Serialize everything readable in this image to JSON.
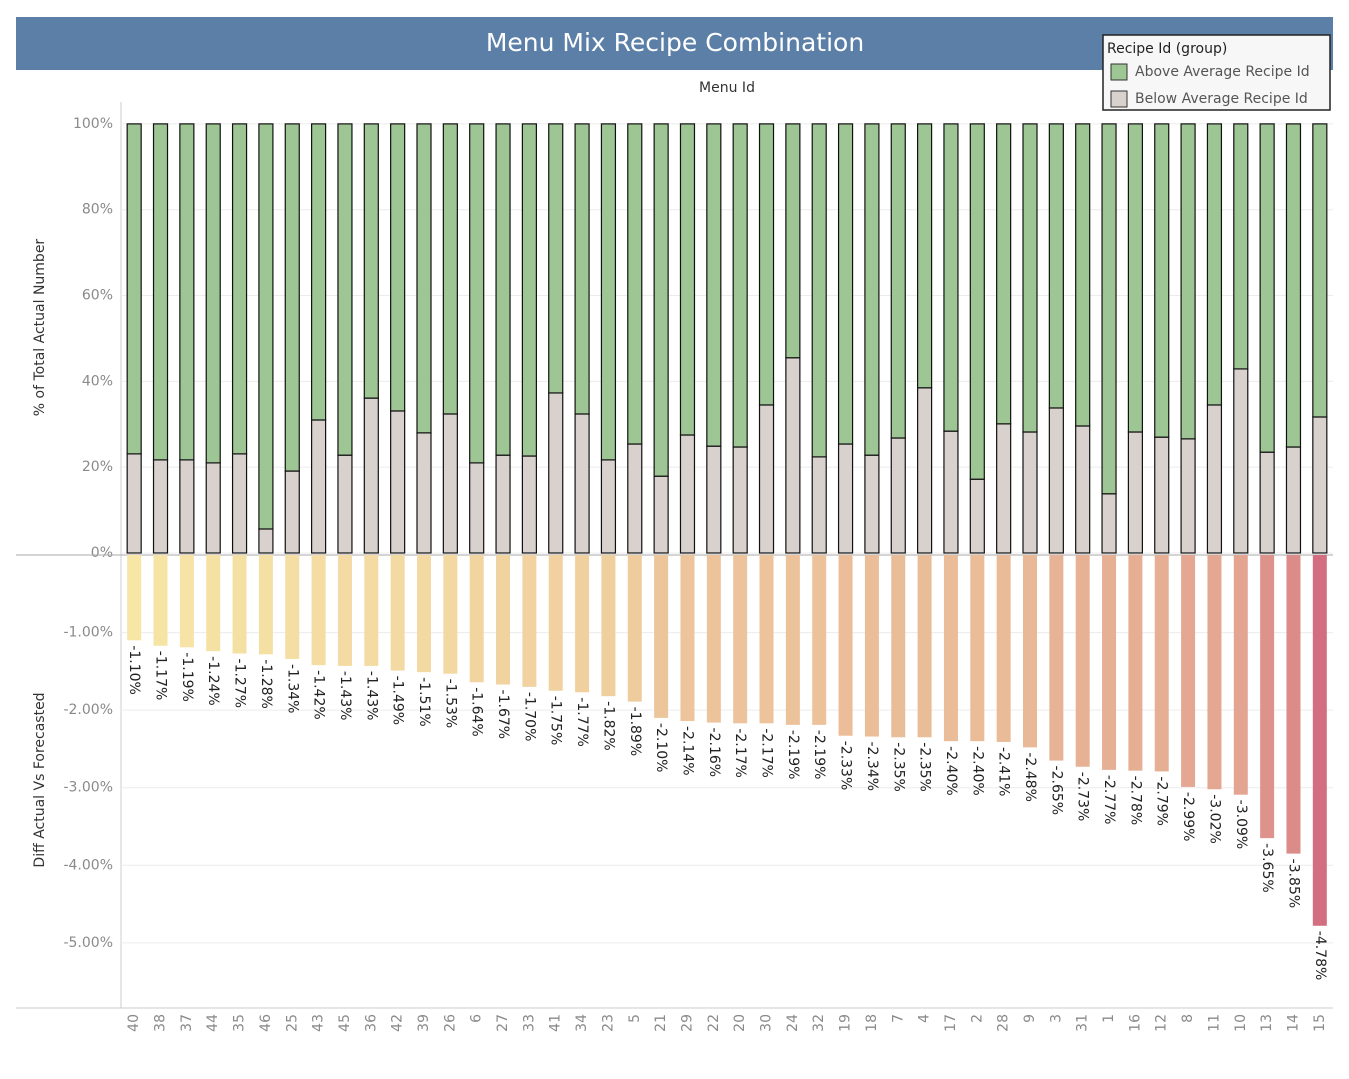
{
  "title": "Menu Mix Recipe Combination",
  "chart_data": [
    {
      "type": "stacked_bar",
      "x_label": "Menu Id",
      "y_label": "% of Total Actual Number",
      "legend_title": "Recipe Id (group)",
      "legend": "top-right",
      "ylim": [
        0,
        105.1
      ],
      "yticks": [
        {
          "value": 0,
          "label": "0%"
        },
        {
          "value": 20,
          "label": "20%"
        },
        {
          "value": 40,
          "label": "40%"
        },
        {
          "value": 60,
          "label": "60%"
        },
        {
          "value": 80,
          "label": "80%"
        },
        {
          "value": 100,
          "label": "100%"
        }
      ],
      "grid": true,
      "series": [
        {
          "name": "Below Average Recipe Id",
          "color": "#d9d1ce",
          "values": [
            23.1,
            21.7,
            21.7,
            21.0,
            23.1,
            5.6,
            19.1,
            31.0,
            22.8,
            36.1,
            33.1,
            28.0,
            32.4,
            21.0,
            22.8,
            22.6,
            37.3,
            32.4,
            21.7,
            25.4,
            17.9,
            27.5,
            24.9,
            24.7,
            34.5,
            45.5,
            22.4,
            25.4,
            22.8,
            26.8,
            38.5,
            28.4,
            17.2,
            30.1,
            28.2,
            33.8,
            29.6,
            13.8,
            28.2,
            27.0,
            26.6,
            34.5,
            42.9,
            23.5,
            24.7,
            31.7
          ]
        },
        {
          "name": "Above Average Recipe Id",
          "color": "#9ec594",
          "values": [
            76.9,
            78.3,
            78.3,
            79.0,
            76.9,
            94.4,
            80.9,
            69.0,
            77.2,
            63.9,
            66.9,
            72.0,
            67.6,
            79.0,
            77.2,
            77.4,
            62.7,
            67.6,
            78.3,
            74.6,
            82.1,
            72.5,
            75.1,
            75.3,
            65.5,
            54.5,
            77.6,
            74.6,
            77.2,
            73.2,
            61.5,
            71.6,
            82.8,
            69.9,
            71.8,
            66.2,
            70.4,
            86.2,
            71.8,
            73.0,
            73.4,
            65.5,
            57.1,
            76.5,
            75.3,
            68.3
          ]
        }
      ]
    },
    {
      "type": "bar",
      "y_label": "Diff Actual Vs Forecasted",
      "categories": [
        "40",
        "38",
        "37",
        "44",
        "35",
        "46",
        "25",
        "43",
        "45",
        "36",
        "42",
        "39",
        "26",
        "6",
        "27",
        "33",
        "41",
        "34",
        "23",
        "5",
        "21",
        "29",
        "22",
        "20",
        "30",
        "24",
        "32",
        "19",
        "18",
        "7",
        "4",
        "17",
        "2",
        "28",
        "9",
        "3",
        "31",
        "1",
        "16",
        "12",
        "8",
        "11",
        "10",
        "13",
        "14",
        "15"
      ],
      "values": [
        -1.1,
        -1.17,
        -1.19,
        -1.24,
        -1.27,
        -1.28,
        -1.34,
        -1.42,
        -1.43,
        -1.43,
        -1.49,
        -1.51,
        -1.53,
        -1.64,
        -1.67,
        -1.7,
        -1.75,
        -1.77,
        -1.82,
        -1.89,
        -2.1,
        -2.14,
        -2.16,
        -2.17,
        -2.17,
        -2.19,
        -2.19,
        -2.33,
        -2.34,
        -2.35,
        -2.35,
        -2.4,
        -2.4,
        -2.41,
        -2.48,
        -2.65,
        -2.73,
        -2.77,
        -2.78,
        -2.79,
        -2.99,
        -3.02,
        -3.09,
        -3.65,
        -3.85,
        -4.78
      ],
      "value_labels": [
        "-1.10%",
        "-1.17%",
        "-1.19%",
        "-1.24%",
        "-1.27%",
        "-1.28%",
        "-1.34%",
        "-1.42%",
        "-1.43%",
        "-1.43%",
        "-1.49%",
        "-1.51%",
        "-1.53%",
        "-1.64%",
        "-1.67%",
        "-1.70%",
        "-1.75%",
        "-1.77%",
        "-1.82%",
        "-1.89%",
        "-2.10%",
        "-2.14%",
        "-2.16%",
        "-2.17%",
        "-2.17%",
        "-2.19%",
        "-2.19%",
        "-2.33%",
        "-2.34%",
        "-2.35%",
        "-2.35%",
        "-2.40%",
        "-2.40%",
        "-2.41%",
        "-2.48%",
        "-2.65%",
        "-2.73%",
        "-2.77%",
        "-2.78%",
        "-2.79%",
        "-2.99%",
        "-3.02%",
        "-3.09%",
        "-3.65%",
        "-3.85%",
        "-4.78%"
      ],
      "color_range": [
        "#f7e6a6",
        "#d26e7f"
      ],
      "ylim": [
        -5.84,
        0
      ],
      "yticks": [
        {
          "value": -1,
          "label": "-1.00%"
        },
        {
          "value": -2,
          "label": "-2.00%"
        },
        {
          "value": -3,
          "label": "-3.00%"
        },
        {
          "value": -4,
          "label": "-4.00%"
        },
        {
          "value": -5,
          "label": "-5.00%"
        }
      ],
      "grid": true
    }
  ]
}
